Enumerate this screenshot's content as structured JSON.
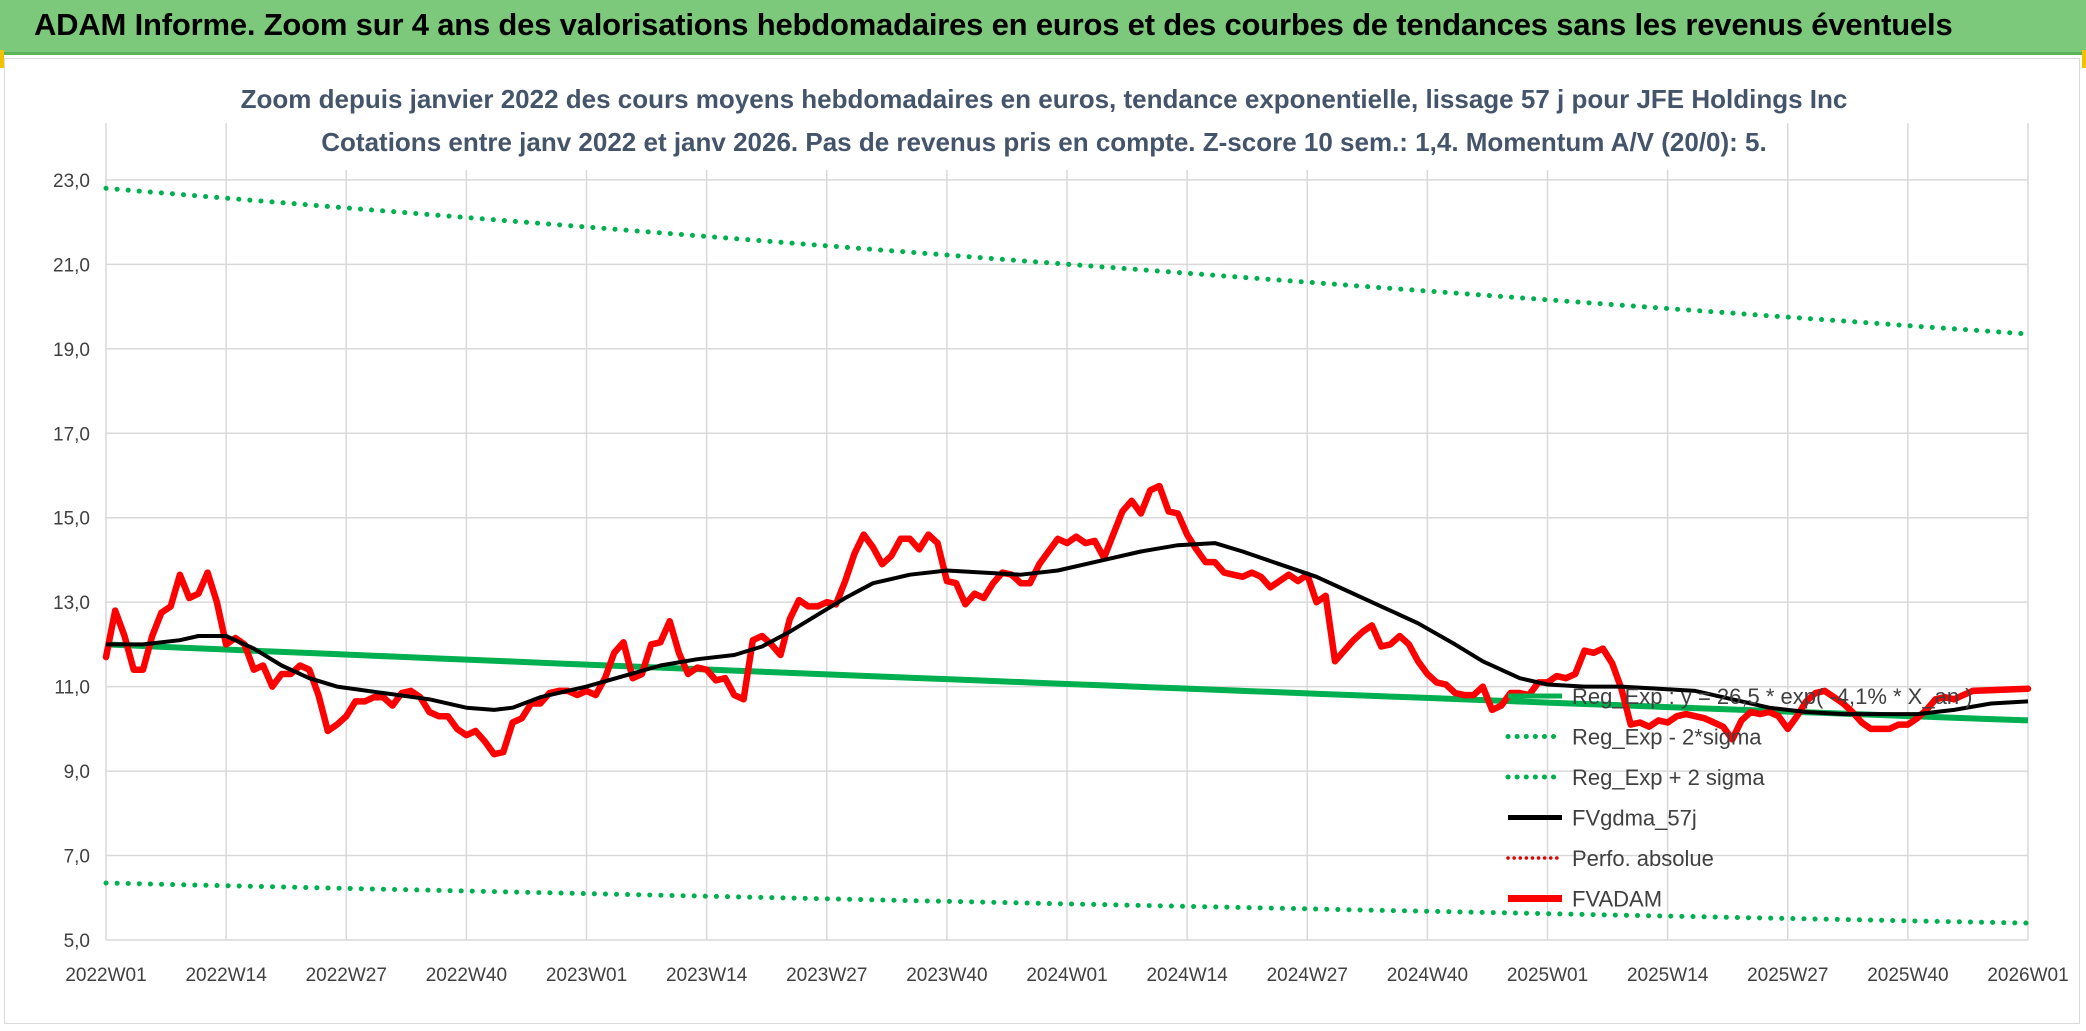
{
  "header": {
    "banner_title": "ADAM Informe. Zoom sur 4 ans des valorisations hebdomadaires en euros et des courbes de tendances sans les revenus éventuels"
  },
  "colors": {
    "banner_bg": "#7dc97b",
    "reg_exp": "#00b050",
    "fvgdma": "#000000",
    "perfo": "#e00000",
    "fvadam": "#ff0000",
    "grid": "#d9d9d9",
    "title_text": "#44546a"
  },
  "chart_data": {
    "type": "line",
    "title_line1": "Zoom depuis janvier 2022 des cours moyens hebdomadaires en euros, tendance exponentielle, lissage 57 j pour JFE Holdings Inc",
    "title_line2": "Cotations entre janv 2022 et janv 2026. Pas de revenus pris en compte. Z-score 10 sem.: 1,4. Momentum A/V (20/0): 5.",
    "ylim": [
      5,
      23.4
    ],
    "yticks": [
      "5,0",
      "7,0",
      "9,0",
      "11,0",
      "13,0",
      "15,0",
      "17,0",
      "19,0",
      "21,0",
      "23,0"
    ],
    "xticks": [
      "2022W01",
      "2022W14",
      "2022W27",
      "2022W40",
      "2023W01",
      "2023W14",
      "2023W27",
      "2023W40",
      "2024W01",
      "2024W14",
      "2024W27",
      "2024W40",
      "2025W01",
      "2025W14",
      "2025W27",
      "2025W40",
      "2026W01"
    ],
    "legend": [
      {
        "name": "Reg_Exp : y = 26,5 * exp( -4,1% * X_an )",
        "style": "solid",
        "color": "#00b050"
      },
      {
        "name": "Reg_Exp - 2*sigma",
        "style": "dotted",
        "color": "#00b050"
      },
      {
        "name": "Reg_Exp + 2 sigma",
        "style": "dotted",
        "color": "#00b050"
      },
      {
        "name": "FVgdma_57j",
        "style": "solid",
        "color": "#000000"
      },
      {
        "name": "Perfo. absolue",
        "style": "dotted",
        "color": "#e00000"
      },
      {
        "name": "FVADAM",
        "style": "solid-thick",
        "color": "#ff0000"
      }
    ],
    "series": {
      "reg_exp": {
        "start": 12.0,
        "end": 10.2
      },
      "reg_minus_2sigma": {
        "start": 6.35,
        "end": 5.4
      },
      "reg_plus_2sigma": {
        "start": 22.8,
        "end": 19.35
      },
      "fvgdma_57j": [
        [
          0,
          12.0
        ],
        [
          4,
          12.0
        ],
        [
          8,
          12.1
        ],
        [
          10,
          12.2
        ],
        [
          13,
          12.2
        ],
        [
          16,
          11.9
        ],
        [
          19,
          11.5
        ],
        [
          22,
          11.2
        ],
        [
          25,
          11.0
        ],
        [
          30,
          10.85
        ],
        [
          35,
          10.7
        ],
        [
          39,
          10.5
        ],
        [
          42,
          10.45
        ],
        [
          44,
          10.5
        ],
        [
          47,
          10.75
        ],
        [
          52,
          11.0
        ],
        [
          56,
          11.25
        ],
        [
          60,
          11.5
        ],
        [
          64,
          11.65
        ],
        [
          68,
          11.75
        ],
        [
          71,
          11.95
        ],
        [
          74,
          12.3
        ],
        [
          77,
          12.7
        ],
        [
          80,
          13.1
        ],
        [
          83,
          13.45
        ],
        [
          87,
          13.65
        ],
        [
          91,
          13.75
        ],
        [
          95,
          13.7
        ],
        [
          99,
          13.65
        ],
        [
          103,
          13.75
        ],
        [
          108,
          14.0
        ],
        [
          112,
          14.2
        ],
        [
          116,
          14.35
        ],
        [
          120,
          14.4
        ],
        [
          123,
          14.2
        ],
        [
          127,
          13.9
        ],
        [
          131,
          13.6
        ],
        [
          134,
          13.3
        ],
        [
          138,
          12.9
        ],
        [
          142,
          12.5
        ],
        [
          146,
          12.0
        ],
        [
          149,
          11.6
        ],
        [
          153,
          11.2
        ],
        [
          156,
          11.05
        ],
        [
          160,
          11.0
        ],
        [
          164,
          11.0
        ],
        [
          168,
          10.95
        ],
        [
          172,
          10.9
        ],
        [
          176,
          10.7
        ],
        [
          180,
          10.5
        ],
        [
          184,
          10.4
        ],
        [
          188,
          10.35
        ],
        [
          192,
          10.35
        ],
        [
          196,
          10.35
        ],
        [
          200,
          10.45
        ],
        [
          204,
          10.6
        ],
        [
          208,
          10.65
        ]
      ],
      "fvadam": [
        [
          0,
          11.7
        ],
        [
          1,
          12.8
        ],
        [
          2,
          12.2
        ],
        [
          3,
          11.4
        ],
        [
          4,
          11.4
        ],
        [
          5,
          12.2
        ],
        [
          6,
          12.75
        ],
        [
          7,
          12.9
        ],
        [
          8,
          13.65
        ],
        [
          9,
          13.1
        ],
        [
          10,
          13.2
        ],
        [
          11,
          13.7
        ],
        [
          12,
          13.0
        ],
        [
          13,
          12.0
        ],
        [
          14,
          12.15
        ],
        [
          15,
          12.0
        ],
        [
          16,
          11.4
        ],
        [
          17,
          11.5
        ],
        [
          18,
          11.0
        ],
        [
          19,
          11.3
        ],
        [
          20,
          11.3
        ],
        [
          21,
          11.5
        ],
        [
          22,
          11.4
        ],
        [
          23,
          10.8
        ],
        [
          24,
          9.95
        ],
        [
          25,
          10.1
        ],
        [
          26,
          10.3
        ],
        [
          27,
          10.65
        ],
        [
          28,
          10.65
        ],
        [
          29,
          10.75
        ],
        [
          30,
          10.75
        ],
        [
          31,
          10.55
        ],
        [
          32,
          10.85
        ],
        [
          33,
          10.9
        ],
        [
          34,
          10.75
        ],
        [
          35,
          10.4
        ],
        [
          36,
          10.3
        ],
        [
          37,
          10.3
        ],
        [
          38,
          10.0
        ],
        [
          39,
          9.85
        ],
        [
          40,
          9.95
        ],
        [
          41,
          9.7
        ],
        [
          42,
          9.4
        ],
        [
          43,
          9.45
        ],
        [
          44,
          10.15
        ],
        [
          45,
          10.25
        ],
        [
          46,
          10.6
        ],
        [
          47,
          10.6
        ],
        [
          48,
          10.85
        ],
        [
          49,
          10.9
        ],
        [
          50,
          10.9
        ],
        [
          51,
          10.8
        ],
        [
          52,
          10.9
        ],
        [
          53,
          10.8
        ],
        [
          54,
          11.2
        ],
        [
          55,
          11.8
        ],
        [
          56,
          12.05
        ],
        [
          57,
          11.2
        ],
        [
          58,
          11.3
        ],
        [
          59,
          12.0
        ],
        [
          60,
          12.05
        ],
        [
          61,
          12.55
        ],
        [
          62,
          11.8
        ],
        [
          63,
          11.3
        ],
        [
          64,
          11.45
        ],
        [
          65,
          11.4
        ],
        [
          66,
          11.15
        ],
        [
          67,
          11.2
        ],
        [
          68,
          10.8
        ],
        [
          69,
          10.7
        ],
        [
          70,
          12.1
        ],
        [
          71,
          12.2
        ],
        [
          72,
          12.0
        ],
        [
          73,
          11.75
        ],
        [
          74,
          12.6
        ],
        [
          75,
          13.05
        ],
        [
          76,
          12.9
        ],
        [
          77,
          12.9
        ],
        [
          78,
          13.0
        ],
        [
          79,
          12.95
        ],
        [
          80,
          13.5
        ],
        [
          81,
          14.15
        ],
        [
          82,
          14.6
        ],
        [
          83,
          14.3
        ],
        [
          84,
          13.9
        ],
        [
          85,
          14.1
        ],
        [
          86,
          14.5
        ],
        [
          87,
          14.5
        ],
        [
          88,
          14.25
        ],
        [
          89,
          14.6
        ],
        [
          90,
          14.4
        ],
        [
          91,
          13.5
        ],
        [
          92,
          13.45
        ],
        [
          93,
          12.95
        ],
        [
          94,
          13.2
        ],
        [
          95,
          13.1
        ],
        [
          96,
          13.45
        ],
        [
          97,
          13.7
        ],
        [
          98,
          13.65
        ],
        [
          99,
          13.45
        ],
        [
          100,
          13.45
        ],
        [
          101,
          13.9
        ],
        [
          102,
          14.2
        ],
        [
          103,
          14.5
        ],
        [
          104,
          14.4
        ],
        [
          105,
          14.55
        ],
        [
          106,
          14.4
        ],
        [
          107,
          14.45
        ],
        [
          108,
          14.05
        ],
        [
          109,
          14.6
        ],
        [
          110,
          15.15
        ],
        [
          111,
          15.4
        ],
        [
          112,
          15.1
        ],
        [
          113,
          15.65
        ],
        [
          114,
          15.75
        ],
        [
          115,
          15.15
        ],
        [
          116,
          15.1
        ],
        [
          117,
          14.6
        ],
        [
          118,
          14.25
        ],
        [
          119,
          13.95
        ],
        [
          120,
          13.95
        ],
        [
          121,
          13.7
        ],
        [
          122,
          13.65
        ],
        [
          123,
          13.6
        ],
        [
          124,
          13.7
        ],
        [
          125,
          13.6
        ],
        [
          126,
          13.35
        ],
        [
          127,
          13.5
        ],
        [
          128,
          13.65
        ],
        [
          129,
          13.5
        ],
        [
          130,
          13.65
        ],
        [
          131,
          13.0
        ],
        [
          132,
          13.15
        ],
        [
          133,
          11.6
        ],
        [
          134,
          11.85
        ],
        [
          135,
          12.1
        ],
        [
          136,
          12.3
        ],
        [
          137,
          12.45
        ],
        [
          138,
          11.95
        ],
        [
          139,
          12.0
        ],
        [
          140,
          12.2
        ],
        [
          141,
          12.0
        ],
        [
          142,
          11.6
        ],
        [
          143,
          11.3
        ],
        [
          144,
          11.1
        ],
        [
          145,
          11.05
        ],
        [
          146,
          10.85
        ],
        [
          147,
          10.8
        ],
        [
          148,
          10.8
        ],
        [
          149,
          11.0
        ],
        [
          150,
          10.45
        ],
        [
          151,
          10.55
        ],
        [
          152,
          10.85
        ],
        [
          153,
          10.85
        ],
        [
          154,
          10.8
        ],
        [
          155,
          11.1
        ],
        [
          156,
          11.1
        ],
        [
          157,
          11.25
        ],
        [
          158,
          11.2
        ],
        [
          159,
          11.3
        ],
        [
          160,
          11.85
        ],
        [
          161,
          11.8
        ],
        [
          162,
          11.9
        ],
        [
          163,
          11.55
        ],
        [
          164,
          10.95
        ],
        [
          165,
          10.1
        ],
        [
          166,
          10.15
        ],
        [
          167,
          10.05
        ],
        [
          168,
          10.2
        ],
        [
          169,
          10.15
        ],
        [
          170,
          10.3
        ],
        [
          171,
          10.35
        ],
        [
          172,
          10.3
        ],
        [
          173,
          10.25
        ],
        [
          174,
          10.15
        ],
        [
          175,
          10.05
        ],
        [
          176,
          9.75
        ],
        [
          177,
          10.2
        ],
        [
          178,
          10.4
        ],
        [
          179,
          10.35
        ],
        [
          180,
          10.4
        ],
        [
          181,
          10.3
        ],
        [
          182,
          10.0
        ],
        [
          183,
          10.3
        ],
        [
          184,
          10.65
        ],
        [
          185,
          10.85
        ],
        [
          186,
          10.9
        ],
        [
          187,
          10.75
        ],
        [
          188,
          10.6
        ],
        [
          189,
          10.4
        ],
        [
          190,
          10.15
        ],
        [
          191,
          10.0
        ],
        [
          192,
          10.0
        ],
        [
          193,
          10.0
        ],
        [
          194,
          10.1
        ],
        [
          195,
          10.1
        ],
        [
          196,
          10.25
        ],
        [
          197,
          10.45
        ],
        [
          198,
          10.7
        ],
        [
          199,
          10.75
        ],
        [
          200,
          10.7
        ],
        [
          201,
          10.8
        ],
        [
          202,
          10.9
        ],
        [
          208,
          10.95
        ]
      ]
    }
  }
}
